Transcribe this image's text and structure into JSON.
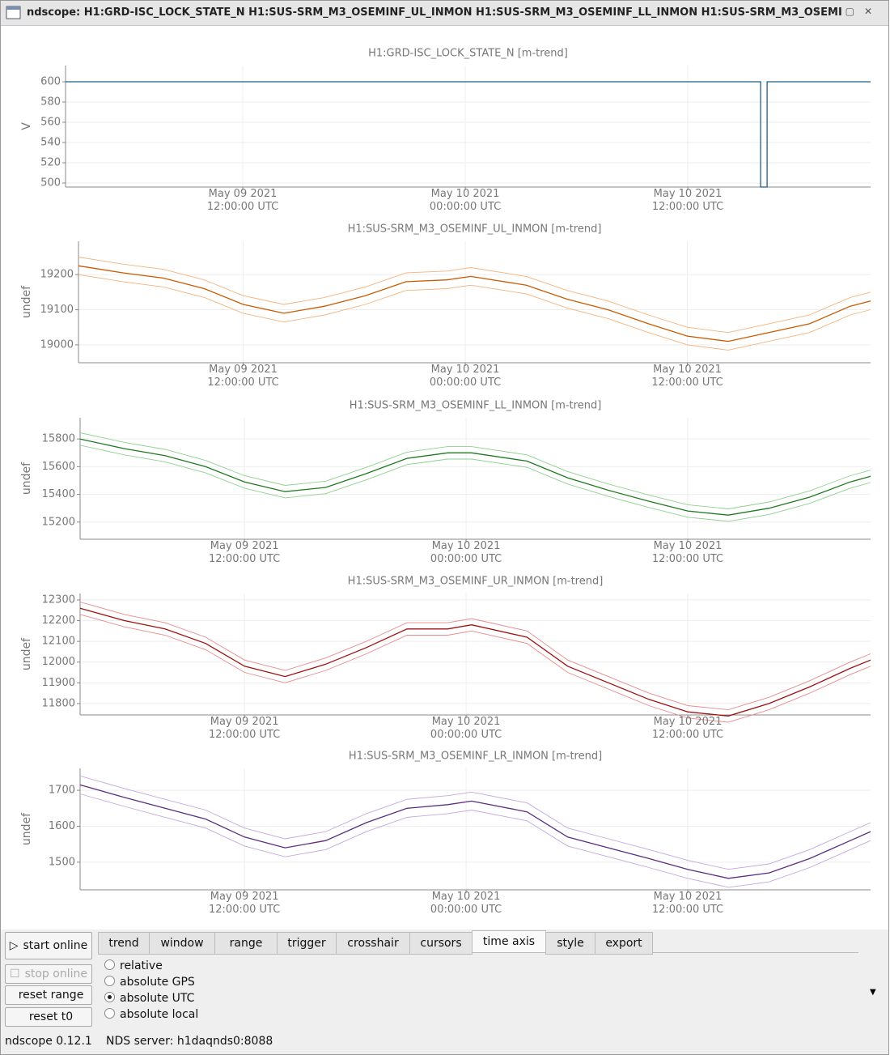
{
  "window": {
    "title": "ndscope: H1:GRD-ISC_LOCK_STATE_N H1:SUS-SRM_M3_OSEMINF_UL_INMON H1:SUS-SRM_M3_OSEMINF_LL_INMON H1:SUS-SRM_M3_OSEMI"
  },
  "chart_data": [
    {
      "type": "line",
      "title": "H1:GRD-ISC_LOCK_STATE_N [m-trend]",
      "ylabel": "V",
      "grid": true,
      "x": [
        2.44,
        39.93,
        39.93,
        40.28,
        40.28,
        45.86
      ],
      "series": [
        {
          "color": "#1f5f8b",
          "values": [
            600,
            600,
            496,
            496,
            600,
            600
          ]
        }
      ],
      "xlim": [
        2.44,
        45.86
      ],
      "ylim": [
        496,
        616
      ],
      "yticks": [
        500,
        520,
        540,
        560,
        580,
        600
      ],
      "xticks": [
        {
          "value": 12,
          "label": "May 09 2021\n12:00:00 UTC"
        },
        {
          "value": 24,
          "label": "May 10 2021\n00:00:00 UTC"
        },
        {
          "value": 36,
          "label": "May 10 2021\n12:00:00 UTC"
        }
      ]
    },
    {
      "type": "line",
      "title": "H1:SUS-SRM_M3_OSEMINF_UL_INMON [m-trend]",
      "ylabel": "undef",
      "grid": true,
      "x": [
        3.1,
        5.5,
        7.7,
        9.9,
        12.0,
        14.2,
        16.4,
        18.6,
        20.8,
        23.0,
        24.3,
        27.3,
        29.5,
        31.7,
        33.9,
        36.0,
        38.2,
        40.4,
        42.6,
        44.8,
        45.9
      ],
      "series": [
        {
          "color": "#f5b27a",
          "values": [
            19250,
            19230,
            19215,
            19185,
            19140,
            19115,
            19135,
            19165,
            19205,
            19210,
            19220,
            19195,
            19155,
            19125,
            19085,
            19050,
            19035,
            19060,
            19085,
            19135,
            19150
          ]
        },
        {
          "color": "#c85a00",
          "values": [
            19225,
            19205,
            19190,
            19160,
            19115,
            19090,
            19110,
            19140,
            19180,
            19185,
            19195,
            19170,
            19130,
            19100,
            19060,
            19025,
            19010,
            19035,
            19060,
            19110,
            19125
          ]
        },
        {
          "color": "#f5b27a",
          "values": [
            19200,
            19180,
            19165,
            19135,
            19090,
            19065,
            19085,
            19115,
            19155,
            19160,
            19170,
            19145,
            19105,
            19075,
            19035,
            19000,
            18985,
            19010,
            19035,
            19085,
            19100
          ]
        }
      ],
      "xlim": [
        3.1,
        45.9
      ],
      "ylim": [
        18949,
        19295
      ],
      "yticks": [
        19000,
        19100,
        19200
      ],
      "xticks": [
        {
          "value": 12,
          "label": "May 09 2021\n12:00:00 UTC"
        },
        {
          "value": 24,
          "label": "May 10 2021\n00:00:00 UTC"
        },
        {
          "value": 36,
          "label": "May 10 2021\n12:00:00 UTC"
        }
      ]
    },
    {
      "type": "line",
      "title": "H1:SUS-SRM_M3_OSEMINF_LL_INMON [m-trend]",
      "ylabel": "undef",
      "grid": true,
      "x": [
        3.1,
        5.5,
        7.7,
        9.9,
        12.0,
        14.2,
        16.4,
        18.6,
        20.8,
        23.0,
        24.3,
        27.3,
        29.5,
        31.7,
        33.9,
        36.0,
        38.2,
        40.4,
        42.6,
        44.8,
        45.9
      ],
      "series": [
        {
          "color": "#8fd08f",
          "values": [
            15845,
            15775,
            15725,
            15645,
            15535,
            15465,
            15495,
            15595,
            15705,
            15745,
            15745,
            15685,
            15565,
            15475,
            15395,
            15325,
            15295,
            15345,
            15425,
            15535,
            15575
          ]
        },
        {
          "color": "#1e7a1e",
          "values": [
            15800,
            15730,
            15680,
            15600,
            15490,
            15420,
            15450,
            15550,
            15660,
            15700,
            15700,
            15640,
            15520,
            15430,
            15350,
            15280,
            15250,
            15300,
            15380,
            15490,
            15530
          ]
        },
        {
          "color": "#8fd08f",
          "values": [
            15755,
            15685,
            15635,
            15555,
            15445,
            15375,
            15405,
            15505,
            15615,
            15655,
            15655,
            15595,
            15475,
            15385,
            15305,
            15235,
            15205,
            15255,
            15335,
            15445,
            15485
          ]
        }
      ],
      "xlim": [
        3.1,
        45.9
      ],
      "ylim": [
        15076,
        15953
      ],
      "yticks": [
        15200,
        15400,
        15600,
        15800
      ],
      "xticks": [
        {
          "value": 12,
          "label": "May 09 2021\n12:00:00 UTC"
        },
        {
          "value": 24,
          "label": "May 10 2021\n00:00:00 UTC"
        },
        {
          "value": 36,
          "label": "May 10 2021\n12:00:00 UTC"
        }
      ]
    },
    {
      "type": "line",
      "title": "H1:SUS-SRM_M3_OSEMINF_UR_INMON [m-trend]",
      "ylabel": "undef",
      "grid": true,
      "x": [
        3.1,
        5.5,
        7.7,
        9.9,
        12.0,
        14.2,
        16.4,
        18.6,
        20.8,
        23.0,
        24.3,
        27.3,
        29.5,
        31.7,
        33.9,
        36.0,
        38.2,
        40.4,
        42.6,
        44.8,
        45.9
      ],
      "series": [
        {
          "color": "#e88a8a",
          "values": [
            12290,
            12230,
            12190,
            12120,
            12010,
            11960,
            12020,
            12100,
            12190,
            12190,
            12210,
            12150,
            12010,
            11930,
            11850,
            11790,
            11770,
            11830,
            11910,
            12000,
            12040
          ]
        },
        {
          "color": "#a01010",
          "values": [
            12260,
            12200,
            12160,
            12090,
            11980,
            11930,
            11990,
            12070,
            12160,
            12160,
            12180,
            12120,
            11980,
            11900,
            11820,
            11760,
            11740,
            11800,
            11880,
            11970,
            12010
          ]
        },
        {
          "color": "#e88a8a",
          "values": [
            12230,
            12170,
            12130,
            12060,
            11950,
            11900,
            11960,
            12040,
            12130,
            12130,
            12150,
            12090,
            11950,
            11870,
            11790,
            11730,
            11710,
            11770,
            11850,
            11940,
            11980
          ]
        }
      ],
      "xlim": [
        3.1,
        45.9
      ],
      "ylim": [
        11745,
        12331
      ],
      "yticks": [
        11800,
        11900,
        12000,
        12100,
        12200,
        12300
      ],
      "xticks": [
        {
          "value": 12,
          "label": "May 09 2021\n12:00:00 UTC"
        },
        {
          "value": 24,
          "label": "May 10 2021\n00:00:00 UTC"
        },
        {
          "value": 36,
          "label": "May 10 2021\n12:00:00 UTC"
        }
      ]
    },
    {
      "type": "line",
      "title": "H1:SUS-SRM_M3_OSEMINF_LR_INMON [m-trend]",
      "ylabel": "undef",
      "grid": true,
      "x": [
        3.1,
        5.5,
        7.7,
        9.9,
        12.0,
        14.2,
        16.4,
        18.6,
        20.8,
        23.0,
        24.3,
        27.3,
        29.5,
        31.7,
        33.9,
        36.0,
        38.2,
        40.4,
        42.6,
        44.8,
        45.9
      ],
      "series": [
        {
          "color": "#c3a8dc",
          "values": [
            1740,
            1705,
            1675,
            1645,
            1595,
            1565,
            1585,
            1635,
            1675,
            1685,
            1695,
            1665,
            1595,
            1565,
            1535,
            1505,
            1480,
            1495,
            1535,
            1585,
            1610
          ]
        },
        {
          "color": "#5a2d82",
          "values": [
            1715,
            1680,
            1650,
            1620,
            1570,
            1540,
            1560,
            1610,
            1650,
            1660,
            1670,
            1640,
            1570,
            1540,
            1510,
            1480,
            1455,
            1470,
            1510,
            1560,
            1585
          ]
        },
        {
          "color": "#c3a8dc",
          "values": [
            1690,
            1655,
            1625,
            1595,
            1545,
            1515,
            1535,
            1585,
            1625,
            1635,
            1645,
            1615,
            1545,
            1515,
            1485,
            1455,
            1430,
            1445,
            1485,
            1535,
            1560
          ]
        }
      ],
      "xlim": [
        3.1,
        45.9
      ],
      "ylim": [
        1423,
        1761
      ],
      "yticks": [
        1500,
        1600,
        1700
      ],
      "xticks": [
        {
          "value": 12,
          "label": "May 09 2021\n12:00:00 UTC"
        },
        {
          "value": 24,
          "label": "May 10 2021\n00:00:00 UTC"
        },
        {
          "value": 36,
          "label": "May 10 2021\n12:00:00 UTC"
        }
      ]
    }
  ],
  "controls": {
    "buttons": [
      {
        "label": "start online",
        "enabled": true
      },
      {
        "label": "stop online",
        "enabled": false
      },
      {
        "label": "reset range",
        "enabled": true
      },
      {
        "label": "reset t0",
        "enabled": true
      }
    ],
    "tabs": [
      {
        "label": "trend",
        "selected": false
      },
      {
        "label": "window",
        "selected": false
      },
      {
        "label": "range",
        "selected": false
      },
      {
        "label": "trigger",
        "selected": false
      },
      {
        "label": "crosshair",
        "selected": false
      },
      {
        "label": "cursors",
        "selected": false
      },
      {
        "label": "time axis",
        "selected": true
      },
      {
        "label": "style",
        "selected": false
      },
      {
        "label": "export",
        "selected": false
      }
    ],
    "radios": [
      {
        "label": "relative",
        "checked": false
      },
      {
        "label": "absolute GPS",
        "checked": false
      },
      {
        "label": "absolute UTC",
        "checked": true
      },
      {
        "label": "absolute local",
        "checked": false
      }
    ]
  },
  "status": {
    "version": "ndscope 0.12.1",
    "server": "NDS server: h1daqnds0:8088"
  }
}
